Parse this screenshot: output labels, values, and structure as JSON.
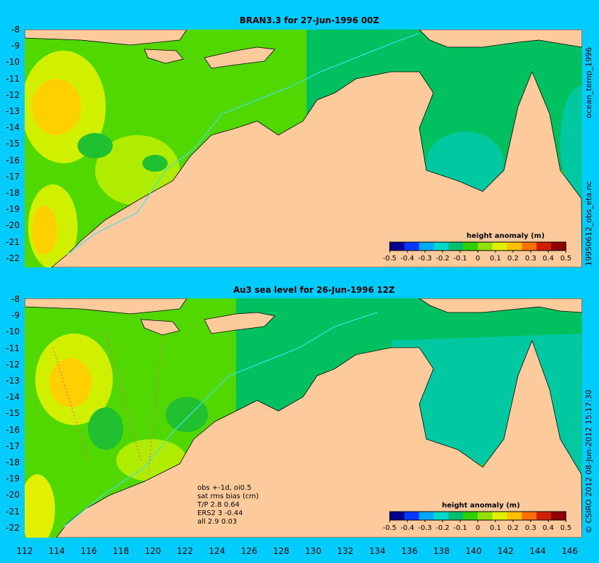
{
  "panels": [
    {
      "title": "BRAN3.3 for 27-Jun-1996 00Z",
      "legend_title": "height anomaly (m)"
    },
    {
      "title": "Au3 sea level  for 26-Jun-1996 12Z",
      "legend_title": "height anomaly (m)",
      "stats": [
        "obs +-1d, oi0.5",
        "sat rms bias (cm)",
        "T/P  2.8 0.64",
        "ERS2 3 -0.44",
        "all 2.9 0.03"
      ]
    }
  ],
  "colorbar": {
    "ticks": [
      "-0.5",
      "-0.4",
      "-0.3",
      "-0.2",
      "-0.1",
      "0",
      "0.1",
      "0.2",
      "0.3",
      "0.4",
      "0.5"
    ],
    "colors": [
      "#000090",
      "#0038ff",
      "#00a8ff",
      "#00d8c8",
      "#00c070",
      "#30d000",
      "#90e000",
      "#e0f000",
      "#ffc000",
      "#ff7000",
      "#d02000",
      "#900000"
    ]
  },
  "y_labels": [
    "-8",
    "-9",
    "-10",
    "-11",
    "-12",
    "-13",
    "-14",
    "-15",
    "-16",
    "-17",
    "-18",
    "-19",
    "-20",
    "-21",
    "-22"
  ],
  "x_labels": [
    "112",
    "114",
    "116",
    "118",
    "120",
    "122",
    "124",
    "126",
    "128",
    "130",
    "132",
    "134",
    "136",
    "138",
    "140",
    "142",
    "144",
    "146"
  ],
  "side_text_top": "19950612_obs_eta.nc",
  "side_text_top2": "ocean_temp_1996",
  "side_text_bottom": "© CSIRO 2012  08-Jun-2012 15:17:30",
  "colors": {
    "background": "#00ccff",
    "land": "#fdcb9b",
    "ocean_green": "#60e000",
    "ocean_teal": "#00c8a0",
    "coast_current": "#40e0f0"
  }
}
